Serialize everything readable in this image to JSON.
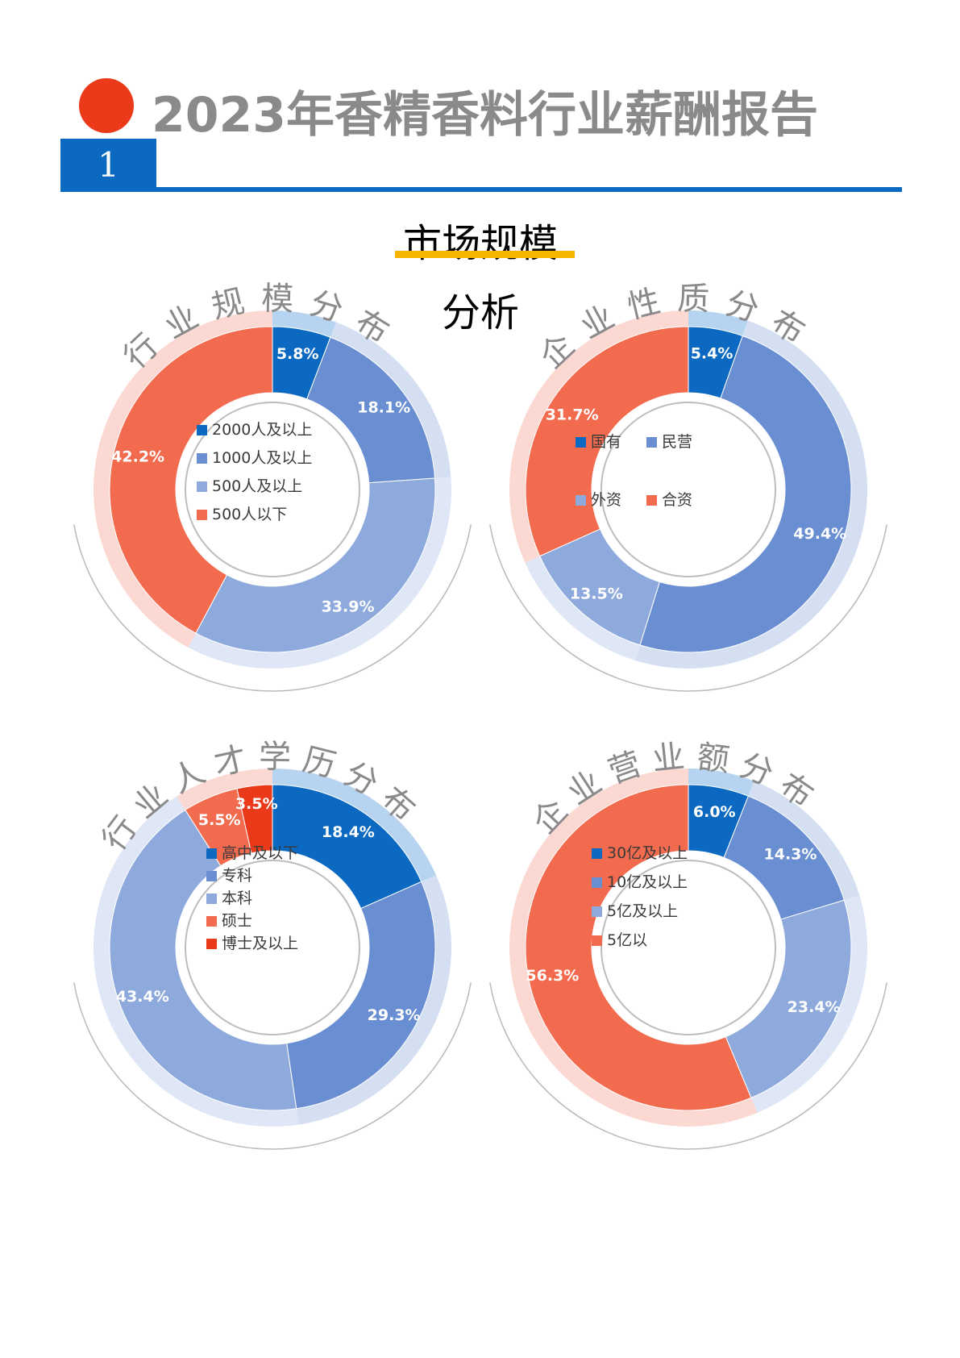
{
  "report": {
    "title": "2023年香精香料行业薪酬报告",
    "section_number": "1",
    "section_title": "市场规模",
    "section_subtitle": "分析"
  },
  "colors": {
    "accent_red": "#ea3a1a",
    "brand_blue": "#0b69c1",
    "highlight_yellow": "#f4b400",
    "ring_text_gray": "#8a8a8a"
  },
  "chart_data": [
    {
      "type": "pie",
      "title": "行业规模分布",
      "categories": [
        "2000人及以上",
        "1000人及以上",
        "500人及以上",
        "500人以下"
      ],
      "values": [
        5.8,
        18.1,
        33.9,
        42.2
      ],
      "labels": [
        "5.8%",
        "18.1%",
        "33.9%",
        "42.2%"
      ],
      "colors": [
        "#0b69c1",
        "#6a8ed2",
        "#8eaadd",
        "#f26b4f"
      ],
      "halo_colors": [
        "#b6d3ef",
        "#d5dff2",
        "#dfe6f6",
        "#fbd8d1"
      ],
      "legend": [
        "2000人及以上",
        "1000人及以上",
        "500人及以上",
        "500人以下"
      ]
    },
    {
      "type": "pie",
      "title": "企业性质分布",
      "categories": [
        "国有",
        "民营",
        "外资",
        "合资"
      ],
      "values": [
        5.4,
        49.4,
        13.5,
        31.7
      ],
      "labels": [
        "5.4%",
        "49.4%",
        "13.5%",
        "31.7%"
      ],
      "colors": [
        "#0b69c1",
        "#6a8ed2",
        "#8eaadd",
        "#f26b4f"
      ],
      "halo_colors": [
        "#b6d3ef",
        "#d5dff2",
        "#dfe6f6",
        "#fbd8d1"
      ],
      "legend": [
        "国有",
        "民营",
        "外资",
        "合资"
      ]
    },
    {
      "type": "pie",
      "title": "行业人才学历分布",
      "categories": [
        "高中及以下",
        "专科",
        "本科",
        "硕士",
        "博士及以上"
      ],
      "values": [
        18.4,
        29.3,
        43.4,
        5.5,
        3.5
      ],
      "labels": [
        "18.4%",
        "29.3%",
        "43.4%",
        "5.5%",
        "3.5%"
      ],
      "colors": [
        "#0b69c1",
        "#6a8ed2",
        "#8eaadd",
        "#f26b4f",
        "#ea3a1a"
      ],
      "halo_colors": [
        "#b6d3ef",
        "#d5dff2",
        "#dfe6f6",
        "#fbd8d1",
        "#fbd8d1"
      ],
      "legend": [
        "高中及以下",
        "专科",
        "本科",
        "硕士",
        "博士及以上"
      ]
    },
    {
      "type": "pie",
      "title": "企业营业额分布",
      "categories": [
        "30亿及以上",
        "10亿及以上",
        "5亿及以上",
        "5亿以"
      ],
      "values": [
        6.0,
        14.3,
        23.4,
        56.3
      ],
      "labels": [
        "6.0%",
        "14.3%",
        "23.4%",
        "56.3%"
      ],
      "colors": [
        "#0b69c1",
        "#6a8ed2",
        "#8eaadd",
        "#f26b4f"
      ],
      "halo_colors": [
        "#b6d3ef",
        "#d5dff2",
        "#dfe6f6",
        "#fbd8d1"
      ],
      "legend": [
        "30亿及以上",
        "10亿及以上",
        "5亿及以上",
        "5亿以"
      ]
    }
  ]
}
